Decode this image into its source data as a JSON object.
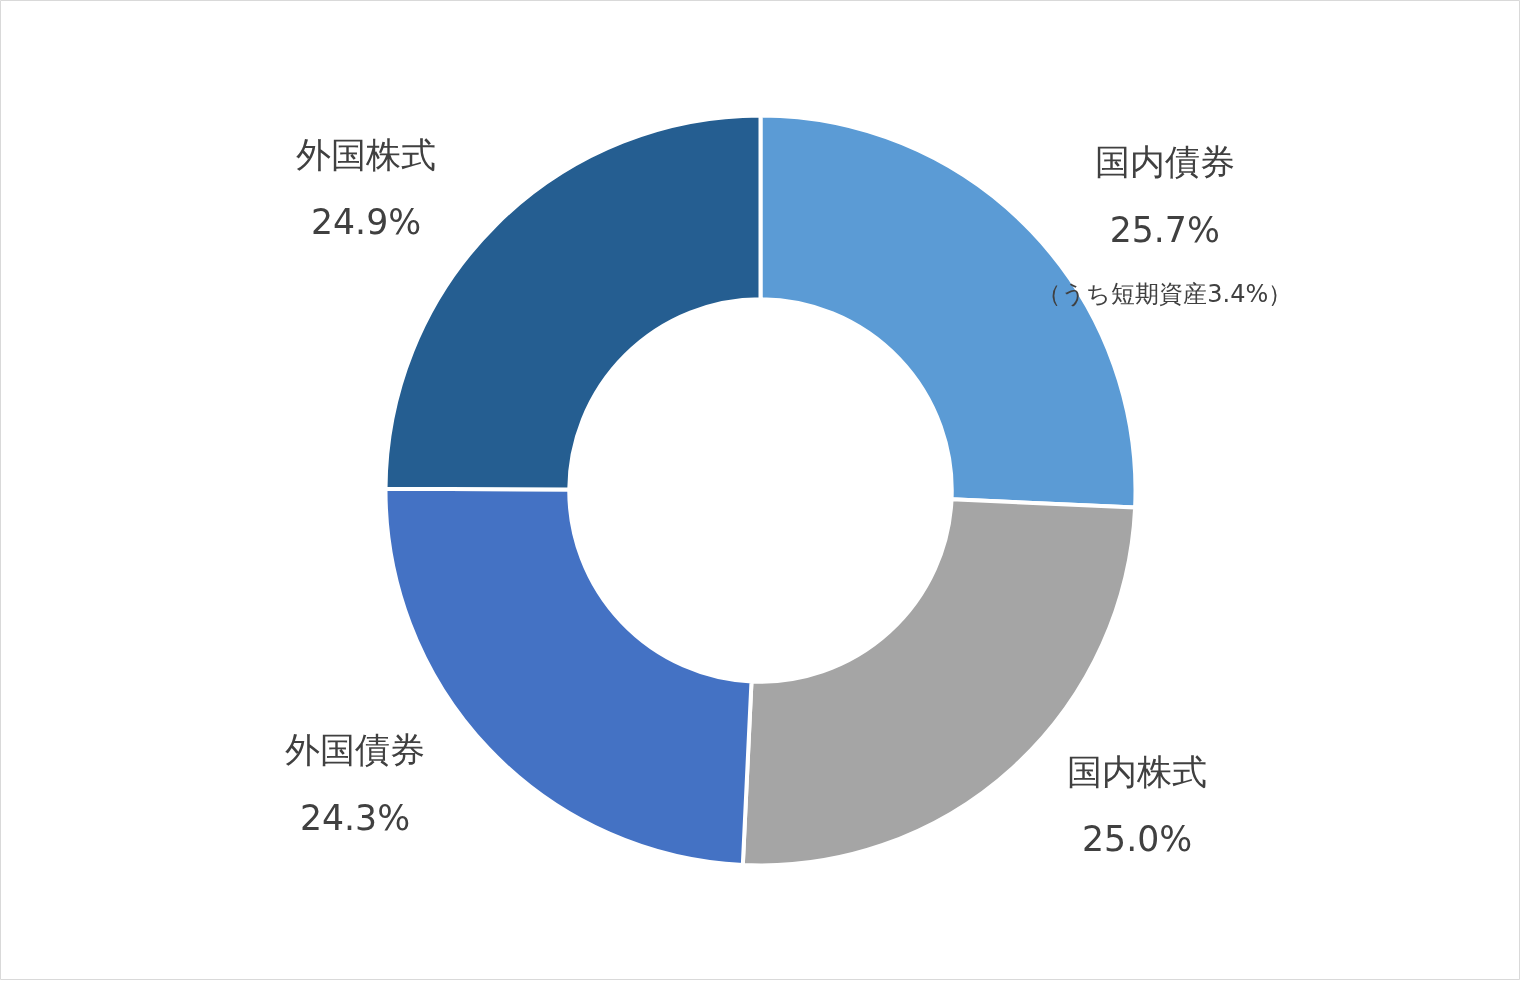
{
  "chart_data": {
    "type": "donut",
    "categories": [
      "国内債券",
      "国内株式",
      "外国債券",
      "外国株式"
    ],
    "values": [
      25.7,
      25.0,
      24.3,
      24.9
    ],
    "colors": [
      "#5b9bd5",
      "#a5a5a5",
      "#4472c4",
      "#255e91"
    ],
    "value_labels": [
      "25.7%",
      "25.0%",
      "24.3%",
      "24.9%"
    ],
    "annotations": [
      "（うち短期資産3.4%）"
    ]
  }
}
